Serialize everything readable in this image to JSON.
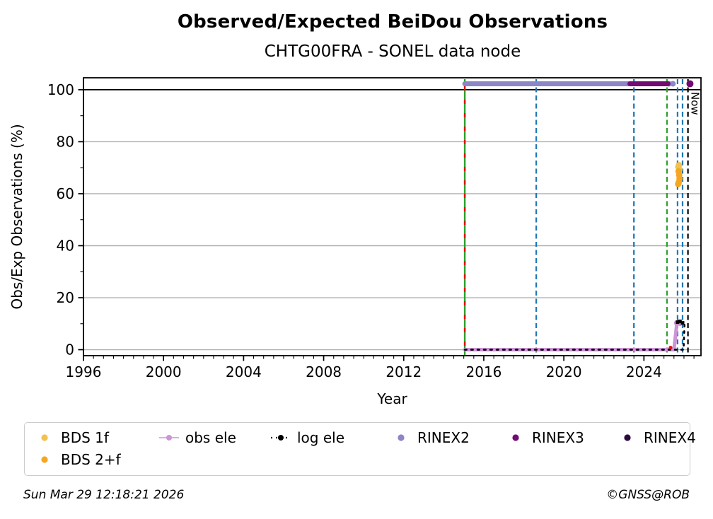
{
  "header": {
    "title": "Observed/Expected BeiDou Observations",
    "subtitle": "CHTG00FRA - SONEL data node"
  },
  "footer": {
    "timestamp": "Sun Mar 29 12:18:21 2026",
    "copyright": "©GNSS@ROB"
  },
  "legend": {
    "items": [
      {
        "label": "BDS 1f",
        "color": "#f2c14e",
        "marker": "dot"
      },
      {
        "label": "obs ele",
        "color": "#ce93d8",
        "marker": "line-dot"
      },
      {
        "label": "log ele",
        "color": "#000000",
        "marker": "dotted-line-dot"
      },
      {
        "label": "RINEX2",
        "color": "#8c85c6",
        "marker": "dot"
      },
      {
        "label": "RINEX3",
        "color": "#720b72",
        "marker": "dot"
      },
      {
        "label": "RINEX4",
        "color": "#2d0a3d",
        "marker": "dot"
      },
      {
        "label": "BDS 2+f",
        "color": "#f5a623",
        "marker": "dot"
      }
    ]
  },
  "chart_data": {
    "type": "scatter",
    "title": "Observed/Expected BeiDou Observations",
    "subtitle": "CHTG00FRA - SONEL data node",
    "xlabel": "Year",
    "ylabel": "Obs/Exp Observations (%)",
    "xlim": [
      1996,
      2026.85
    ],
    "ylim": [
      -2.3,
      104.6
    ],
    "xticks": [
      1996,
      2000,
      2004,
      2008,
      2012,
      2016,
      2020,
      2024
    ],
    "yticks": [
      0,
      20,
      40,
      60,
      80,
      100
    ],
    "y_minor_ticks": [
      10,
      30,
      50,
      70,
      90
    ],
    "x_minor_step": 0.5,
    "grid": "horizontal",
    "ref_line_y": 100,
    "colors": {
      "grid": "#b0b0b0",
      "axis": "#000000"
    },
    "vlines": [
      {
        "name": "data-start",
        "year": 2015.05,
        "color": "#2ca02c",
        "lw": 2.4,
        "solid": true,
        "overlay": {
          "color": "#dd1111",
          "dash": "6 13",
          "lw": 2.4
        }
      },
      {
        "name": "event-2018",
        "year": 2018.62,
        "color": "#1f77b4"
      },
      {
        "name": "event-2023",
        "year": 2023.5,
        "color": "#1f77b4"
      },
      {
        "name": "event-2025-green",
        "year": 2025.15,
        "color": "#2ca02c"
      },
      {
        "name": "event-2025-blue-1",
        "year": 2025.68,
        "color": "#1f77b4"
      },
      {
        "name": "event-2025-blue-2",
        "year": 2025.93,
        "color": "#1f77b4"
      },
      {
        "name": "now",
        "year": 2026.2,
        "color": "#000000",
        "label": "Now"
      }
    ],
    "series": [
      {
        "name": "RINEX2",
        "color": "#8c85c6",
        "y": 102.3,
        "lw": 7,
        "segments": [
          [
            2015.05,
            2025.05
          ]
        ],
        "dots": [
          [
            2025.25,
            102.3
          ],
          [
            2025.45,
            102.3
          ]
        ],
        "r": 4
      },
      {
        "name": "RINEX3",
        "color": "#720b72",
        "y": 102.3,
        "lw": 7,
        "segments": [
          [
            2023.3,
            2025.2
          ]
        ],
        "dots": [
          [
            2026.3,
            102.3
          ]
        ],
        "r": 5
      },
      {
        "name": "obs ele",
        "color": "#ce93d8",
        "lw": 5,
        "points": [
          [
            2015.05,
            0
          ],
          [
            2025.5,
            0
          ],
          [
            2025.65,
            10.3
          ],
          [
            2025.82,
            10.3
          ]
        ],
        "dots": [
          [
            2025.62,
            10.3
          ],
          [
            2025.72,
            10.6
          ],
          [
            2025.8,
            10.0
          ]
        ],
        "r": 3.4
      },
      {
        "name": "log ele",
        "color": "#000000",
        "lw": 2.6,
        "dash": "2.5 6.5",
        "points": [
          [
            2015.05,
            0
          ],
          [
            2025.98,
            0
          ],
          [
            2026.03,
            10
          ]
        ],
        "squares": [
          [
            2025.68,
            10.6
          ],
          [
            2025.8,
            10.9
          ],
          [
            2025.93,
            10.3
          ]
        ]
      },
      {
        "name": "obs flag",
        "color": "#dd1111",
        "dots": [
          [
            2025.33,
            0.8
          ]
        ],
        "r": 2.6
      },
      {
        "name": "BDS 1f",
        "color": "#f2c14e",
        "dots": [
          [
            2025.72,
            70.3
          ],
          [
            2025.75,
            71.0
          ],
          [
            2025.77,
            69.3
          ]
        ],
        "r": 4.5
      },
      {
        "name": "BDS 2+f",
        "color": "#f5a623",
        "dots": [
          [
            2025.73,
            68.6
          ],
          [
            2025.76,
            67.2
          ],
          [
            2025.78,
            65.8
          ],
          [
            2025.74,
            64.4
          ],
          [
            2025.71,
            63.7
          ]
        ],
        "r": 4.5
      }
    ]
  }
}
